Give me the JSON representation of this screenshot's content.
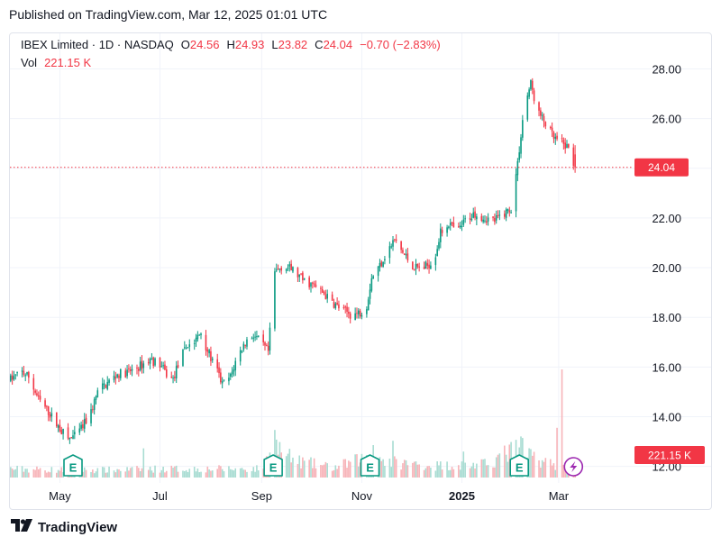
{
  "header": {
    "published": "Published on TradingView.com, Mar 12, 2025 01:01 UTC"
  },
  "legend": {
    "symbol": "IBEX Limited · 1D · NASDAQ",
    "open_label": "O",
    "open": "24.56",
    "high_label": "H",
    "high": "24.93",
    "low_label": "L",
    "low": "23.82",
    "close_label": "C",
    "close": "24.04",
    "change": "−0.70 (−2.83%)",
    "vol_label": "Vol",
    "vol": "221.15 K"
  },
  "footer": {
    "brand": "TradingView",
    "logo_icon": "tradingview-logo-icon"
  },
  "colors": {
    "up": "#089981",
    "down": "#f23645",
    "vol_up": "#a8dcd2",
    "vol_down": "#f7b3b8",
    "grid": "#f0f3fa",
    "event_icon": "#089981",
    "lightning": "#9c27b0"
  },
  "chart_data": {
    "type": "candlestick",
    "xlabel": "",
    "ylabel": "",
    "y_ticks": [
      "12.00",
      "14.00",
      "16.00",
      "18.00",
      "20.00",
      "22.00",
      "24.00",
      "26.00",
      "28.00"
    ],
    "ylim": [
      11.55,
      28.6
    ],
    "x_ticks": [
      {
        "label": "May",
        "date": "2024-05-01",
        "bold": false
      },
      {
        "label": "Jul",
        "date": "2024-07-01",
        "bold": false
      },
      {
        "label": "Sep",
        "date": "2024-09-01",
        "bold": false
      },
      {
        "label": "Nov",
        "date": "2024-11-01",
        "bold": false
      },
      {
        "label": "2025",
        "date": "2025-01-01",
        "bold": true
      },
      {
        "label": "Mar",
        "date": "2025-03-01",
        "bold": false
      }
    ],
    "xlim": [
      "2024-03-31",
      "2025-04-14"
    ],
    "last_price": {
      "value": 24.04,
      "label": "24.04"
    },
    "last_volume": {
      "label": "221.15 K"
    },
    "events": [
      {
        "icon": "earnings-icon",
        "label": "E",
        "date": "2024-05-09"
      },
      {
        "icon": "earnings-icon",
        "label": "E",
        "date": "2024-09-08"
      },
      {
        "icon": "earnings-icon",
        "label": "E",
        "date": "2024-11-06"
      },
      {
        "icon": "earnings-icon",
        "label": "E",
        "date": "2025-02-05"
      },
      {
        "icon": "lightning-icon",
        "label": "",
        "date": "2025-03-10"
      }
    ],
    "close_path": [
      [
        "2024-04-01",
        15.5
      ],
      [
        "2024-04-08",
        15.8
      ],
      [
        "2024-04-12",
        15.6
      ],
      [
        "2024-04-18",
        14.7
      ],
      [
        "2024-04-24",
        14.2
      ],
      [
        "2024-04-30",
        13.6
      ],
      [
        "2024-05-06",
        13.1
      ],
      [
        "2024-05-10",
        13.2
      ],
      [
        "2024-05-15",
        13.6
      ],
      [
        "2024-05-20",
        14.2
      ],
      [
        "2024-05-24",
        15.0
      ],
      [
        "2024-05-29",
        15.3
      ],
      [
        "2024-06-05",
        15.7
      ],
      [
        "2024-06-12",
        15.8
      ],
      [
        "2024-06-18",
        16.0
      ],
      [
        "2024-06-25",
        16.3
      ],
      [
        "2024-07-01",
        16.1
      ],
      [
        "2024-07-05",
        15.7
      ],
      [
        "2024-07-09",
        15.5
      ],
      [
        "2024-07-13",
        16.3
      ],
      [
        "2024-07-18",
        16.9
      ],
      [
        "2024-07-22",
        17.0
      ],
      [
        "2024-07-26",
        17.4
      ],
      [
        "2024-07-31",
        16.5
      ],
      [
        "2024-08-05",
        15.8
      ],
      [
        "2024-08-08",
        15.3
      ],
      [
        "2024-08-13",
        15.6
      ],
      [
        "2024-08-17",
        16.4
      ],
      [
        "2024-08-22",
        17.0
      ],
      [
        "2024-08-27",
        17.3
      ],
      [
        "2024-08-31",
        17.0
      ],
      [
        "2024-09-05",
        16.6
      ],
      [
        "2024-09-09",
        19.8
      ],
      [
        "2024-09-14",
        20.1
      ],
      [
        "2024-09-20",
        19.9
      ],
      [
        "2024-09-26",
        19.5
      ],
      [
        "2024-10-02",
        19.3
      ],
      [
        "2024-10-08",
        19.0
      ],
      [
        "2024-10-14",
        18.6
      ],
      [
        "2024-10-20",
        18.3
      ],
      [
        "2024-10-26",
        18.1
      ],
      [
        "2024-10-31",
        18.2
      ],
      [
        "2024-11-04",
        18.5
      ],
      [
        "2024-11-07",
        19.6
      ],
      [
        "2024-11-12",
        20.1
      ],
      [
        "2024-11-16",
        20.6
      ],
      [
        "2024-11-21",
        21.1
      ],
      [
        "2024-11-27",
        20.5
      ],
      [
        "2024-12-03",
        20.0
      ],
      [
        "2024-12-09",
        20.0
      ],
      [
        "2024-12-15",
        20.3
      ],
      [
        "2024-12-19",
        21.4
      ],
      [
        "2024-12-24",
        21.8
      ],
      [
        "2024-12-29",
        21.4
      ],
      [
        "2025-01-03",
        21.9
      ],
      [
        "2025-01-09",
        22.2
      ],
      [
        "2025-01-15",
        22.0
      ],
      [
        "2025-01-21",
        21.9
      ],
      [
        "2025-01-27",
        22.2
      ],
      [
        "2025-01-31",
        22.4
      ],
      [
        "2025-02-04",
        24.2
      ],
      [
        "2025-02-08",
        26.5
      ],
      [
        "2025-02-12",
        27.4
      ],
      [
        "2025-02-16",
        26.3
      ],
      [
        "2025-02-21",
        25.8
      ],
      [
        "2025-02-26",
        25.2
      ],
      [
        "2025-03-03",
        25.0
      ],
      [
        "2025-03-07",
        24.8
      ],
      [
        "2025-03-11",
        24.04
      ]
    ],
    "volume_path": [
      [
        "2024-04-01",
        0.08
      ],
      [
        "2024-05-01",
        0.07
      ],
      [
        "2024-06-01",
        0.07
      ],
      [
        "2024-07-01",
        0.08
      ],
      [
        "2024-08-01",
        0.08
      ],
      [
        "2024-09-01",
        0.08
      ],
      [
        "2024-09-09",
        0.3
      ],
      [
        "2024-09-20",
        0.16
      ],
      [
        "2024-10-15",
        0.09
      ],
      [
        "2024-11-07",
        0.2
      ],
      [
        "2024-11-20",
        0.14
      ],
      [
        "2024-12-15",
        0.11
      ],
      [
        "2025-01-15",
        0.12
      ],
      [
        "2025-02-05",
        0.28
      ],
      [
        "2025-02-10",
        0.22
      ],
      [
        "2025-02-25",
        0.12
      ],
      [
        "2025-03-11",
        0.08
      ]
    ],
    "volume_spikes": [
      [
        "2024-06-21",
        0.27
      ],
      [
        "2024-09-09",
        0.44
      ],
      [
        "2024-11-08",
        0.3
      ],
      [
        "2024-11-20",
        0.34
      ],
      [
        "2025-01-02",
        0.24
      ],
      [
        "2025-02-06",
        0.38
      ],
      [
        "2025-02-28",
        0.46
      ],
      [
        "2025-03-03",
        1.0
      ]
    ]
  }
}
